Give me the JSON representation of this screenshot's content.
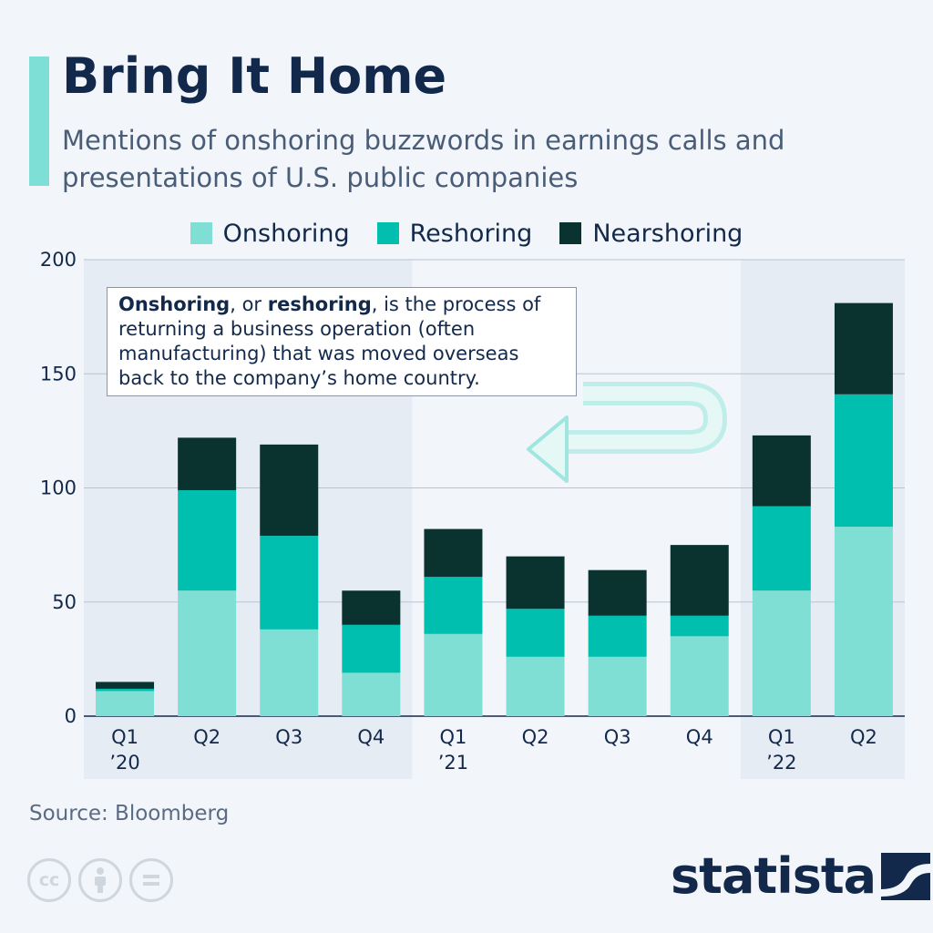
{
  "header": {
    "title": "Bring It Home",
    "subtitle": "Mentions of onshoring buzzwords in earnings calls and presentations of U.S. public companies"
  },
  "annotation": {
    "bold_1": "Onshoring",
    "text_1": ", or ",
    "bold_2": "reshoring",
    "text_2": ", is the process of returning a business operation (often manufacturing) that was moved overseas back to the company’s home country."
  },
  "footer": {
    "source": "Source: Bloomberg",
    "brand": "statista",
    "license_icons": [
      "cc-icon",
      "attribution-icon",
      "no-derivatives-icon"
    ]
  },
  "colors": {
    "onshoring": "#7fdfd4",
    "reshoring": "#00bfae",
    "nearshoring": "#0a322f",
    "year_band": "#e6ecf4",
    "accent": "#7ddfd5"
  },
  "chart_data": {
    "type": "bar",
    "stacked": true,
    "title": "Bring It Home",
    "categories": [
      "Q1 ’20",
      "Q2",
      "Q3",
      "Q4",
      "Q1 ’21",
      "Q2",
      "Q3",
      "Q4",
      "Q1 ’22",
      "Q2"
    ],
    "category_lines": [
      [
        "Q1",
        "’20"
      ],
      [
        "Q2"
      ],
      [
        "Q3"
      ],
      [
        "Q4"
      ],
      [
        "Q1",
        "’21"
      ],
      [
        "Q2"
      ],
      [
        "Q3"
      ],
      [
        "Q4"
      ],
      [
        "Q1",
        "’22"
      ],
      [
        "Q2"
      ]
    ],
    "series": [
      {
        "name": "Onshoring",
        "values": [
          11,
          55,
          38,
          19,
          36,
          26,
          26,
          35,
          55,
          83
        ]
      },
      {
        "name": "Reshoring",
        "values": [
          1,
          44,
          41,
          21,
          25,
          21,
          18,
          9,
          37,
          58
        ]
      },
      {
        "name": "Nearshoring",
        "values": [
          3,
          23,
          40,
          15,
          21,
          23,
          20,
          31,
          31,
          40
        ]
      }
    ],
    "ylim": [
      0,
      200
    ],
    "yticks": [
      0,
      50,
      100,
      150,
      200
    ],
    "grid": true,
    "legend_position": "top",
    "xlabel": "",
    "ylabel": ""
  }
}
